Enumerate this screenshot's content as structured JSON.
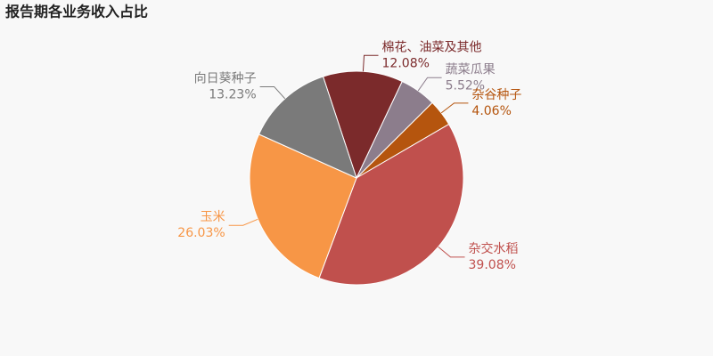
{
  "chart_data": {
    "type": "pie",
    "title": "报告期各业务收入占比",
    "categories": [
      "棉花、油菜及其他",
      "蔬菜瓜果",
      "杂谷种子",
      "杂交水稻",
      "玉米",
      "向日葵种子"
    ],
    "values": [
      12.08,
      5.52,
      4.06,
      39.08,
      26.03,
      13.23
    ],
    "value_labels": [
      "12.08%",
      "5.52%",
      "4.06%",
      "39.08%",
      "26.03%",
      "13.23%"
    ],
    "colors": [
      "#7b2a2b",
      "#8c7d8c",
      "#b5550e",
      "#c0504d",
      "#f79646",
      "#7a7a7a"
    ]
  }
}
